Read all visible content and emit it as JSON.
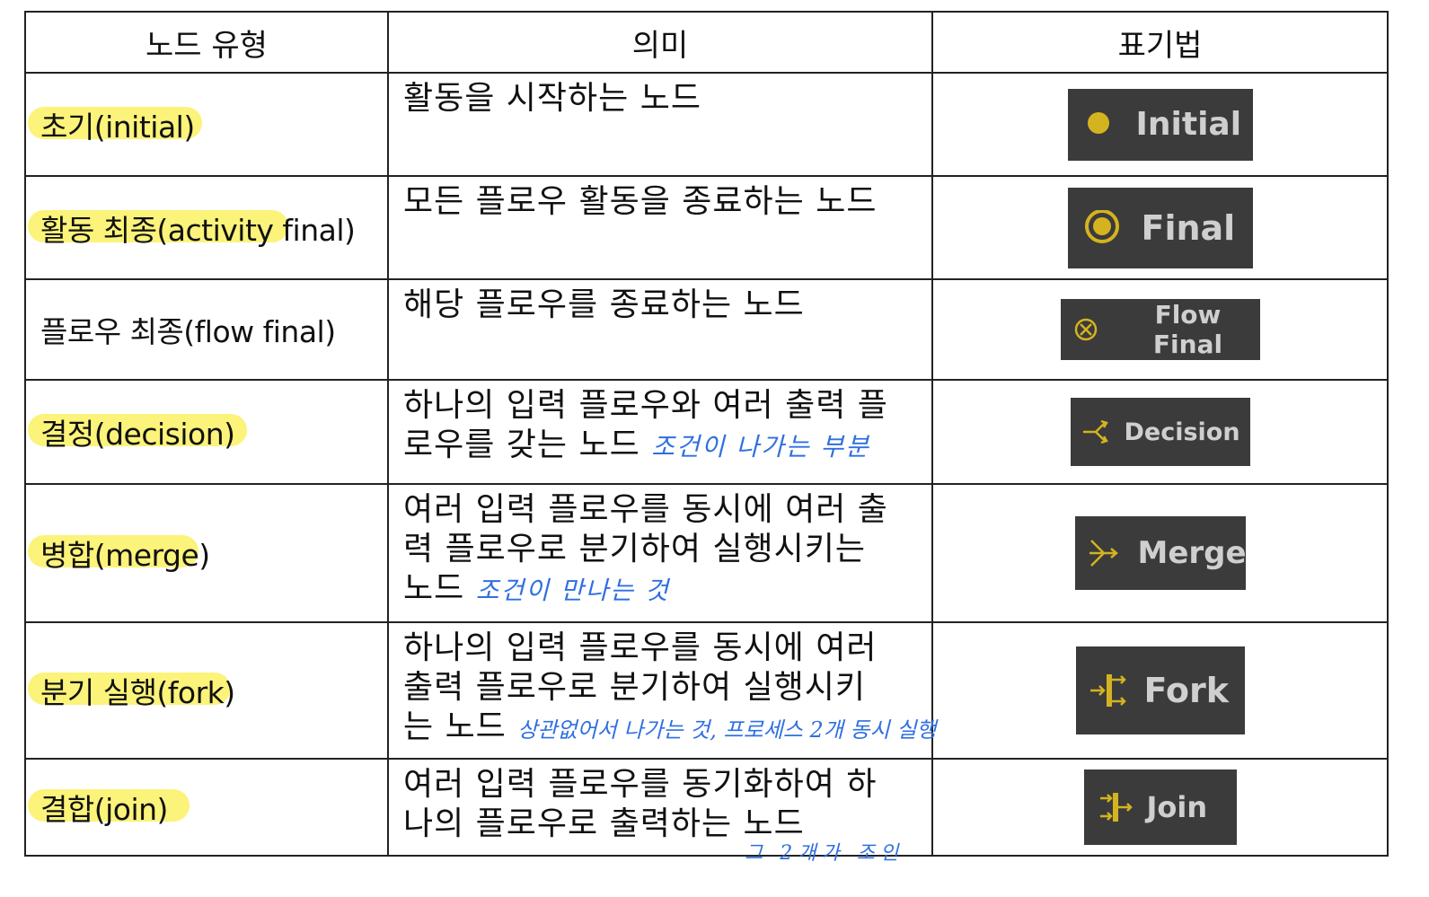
{
  "headers": [
    "노드 유형",
    "의미",
    "표기법"
  ],
  "rows": [
    {
      "type": "초기(initial)",
      "meaning_lines": [
        "활동을 시작하는 노드"
      ],
      "note": "",
      "notation": "Initial",
      "icon": "initial-dot-icon"
    },
    {
      "type": "활동 최종(activity final)",
      "meaning_lines": [
        "모든 플로우 활동을 종료하는 노드"
      ],
      "note": "",
      "notation": "Final",
      "icon": "final-ring-icon"
    },
    {
      "type": "플로우 최종(flow final)",
      "meaning_lines": [
        "해당 플로우를 종료하는 노드"
      ],
      "note": "",
      "notation": "Flow Final",
      "icon": "flow-final-x-icon"
    },
    {
      "type": "결정(decision)",
      "meaning_lines": [
        "하나의 입력 플로우와 여러 출력 플",
        "로우를 갖는 노드"
      ],
      "note": "조건이 나가는 부분",
      "notation": "Decision",
      "icon": "decision-branch-icon"
    },
    {
      "type": "병합(merge)",
      "meaning_lines": [
        "여러 입력 플로우를 동시에 여러 출",
        "력 플로우로 분기하여 실행시키는",
        "노드"
      ],
      "note": "조건이 만나는 것",
      "notation": "Merge",
      "icon": "merge-icon"
    },
    {
      "type": "분기 실행(fork)",
      "meaning_lines": [
        "하나의 입력 플로우를 동시에 여러",
        "출력 플로우로 분기하여 실행시키",
        "는 노드"
      ],
      "note": "상관없어서 나가는 것, 프로세스 2개 동시 실행",
      "notation": "Fork",
      "icon": "fork-icon"
    },
    {
      "type": "결합(join)",
      "meaning_lines": [
        "여러 입력 플로우를 동기화하여 하",
        "나의 플로우로 출력하는 노드"
      ],
      "note": "그 2개가 조인",
      "notation": "Join",
      "icon": "join-icon"
    }
  ],
  "colors": {
    "highlight": "#fbf37a",
    "handwriting": "#2f6fe0",
    "badge_bg": "#3b3b3b",
    "badge_text": "#cfcfcf",
    "icon_gold": "#d4b320"
  }
}
